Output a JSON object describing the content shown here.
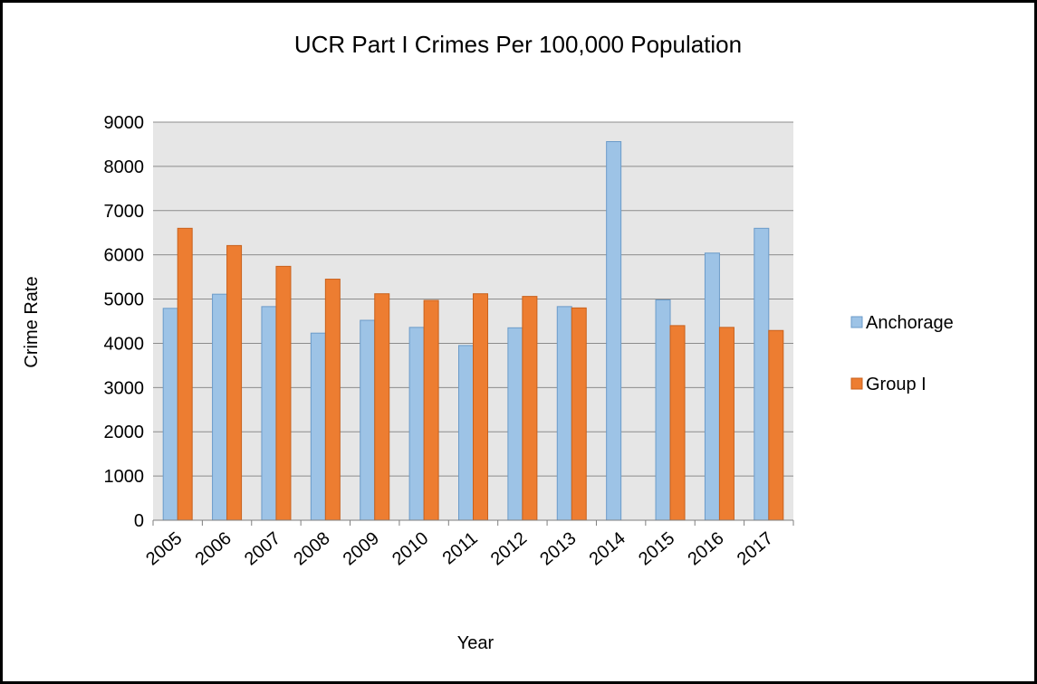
{
  "chart_data": {
    "type": "bar",
    "title": "UCR Part I Crimes Per 100,000 Population",
    "xlabel": "Year",
    "ylabel": "Crime Rate",
    "categories": [
      "2005",
      "2006",
      "2007",
      "2008",
      "2009",
      "2010",
      "2011",
      "2012",
      "2013",
      "2014",
      "2015",
      "2016",
      "2017"
    ],
    "yticks": [
      "0",
      "1000",
      "2000",
      "3000",
      "4000",
      "5000",
      "6000",
      "7000",
      "8000",
      "9000"
    ],
    "ylim": [
      0,
      9000
    ],
    "grid": true,
    "legend_position": "right",
    "plot_background": "#e6e6e6",
    "series": [
      {
        "name": "Anchorage",
        "color": "#9dc3e6",
        "values": [
          4790,
          5110,
          4830,
          4230,
          4520,
          4360,
          3950,
          4350,
          4830,
          8560,
          4980,
          6040,
          6600
        ]
      },
      {
        "name": "Group I",
        "color": "#ed7d31",
        "values": [
          6600,
          6210,
          5740,
          5450,
          5120,
          4970,
          5120,
          5060,
          4800,
          null,
          4400,
          4360,
          4290
        ]
      }
    ]
  }
}
